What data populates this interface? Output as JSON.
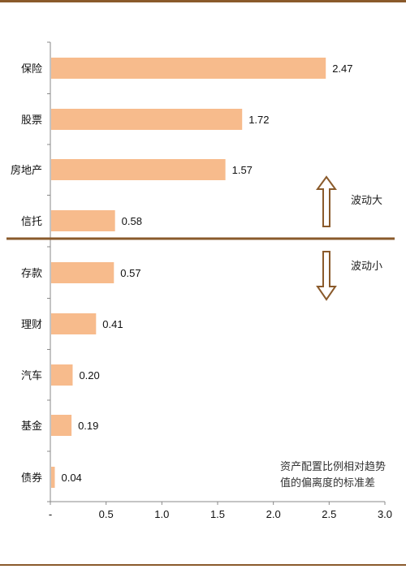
{
  "chart_data": {
    "type": "bar",
    "orientation": "horizontal",
    "categories": [
      "保险",
      "股票",
      "房地产",
      "信托",
      "存款",
      "理财",
      "汽车",
      "基金",
      "债券"
    ],
    "values": [
      2.47,
      1.72,
      1.57,
      0.58,
      0.57,
      0.41,
      0.2,
      0.19,
      0.04
    ],
    "value_labels": [
      "2.47",
      "1.72",
      "1.57",
      "0.58",
      "0.57",
      "0.41",
      "0.20",
      "0.19",
      "0.04"
    ],
    "xlim": [
      0,
      3.0
    ],
    "x_ticks": [
      0,
      0.5,
      1.0,
      1.5,
      2.0,
      2.5,
      3.0
    ],
    "x_tick_labels": [
      "-",
      "0.5",
      "1.0",
      "1.5",
      "2.0",
      "2.5",
      "3.0"
    ],
    "grid": false,
    "bar_color": "#f7bb8c",
    "divider_color": "#8a5a2b",
    "annotations": {
      "up_label": "波动大",
      "down_label": "波动小",
      "note_line1": "资产配置比例相对趋势",
      "note_line2": "值的偏离度的标准差"
    }
  }
}
